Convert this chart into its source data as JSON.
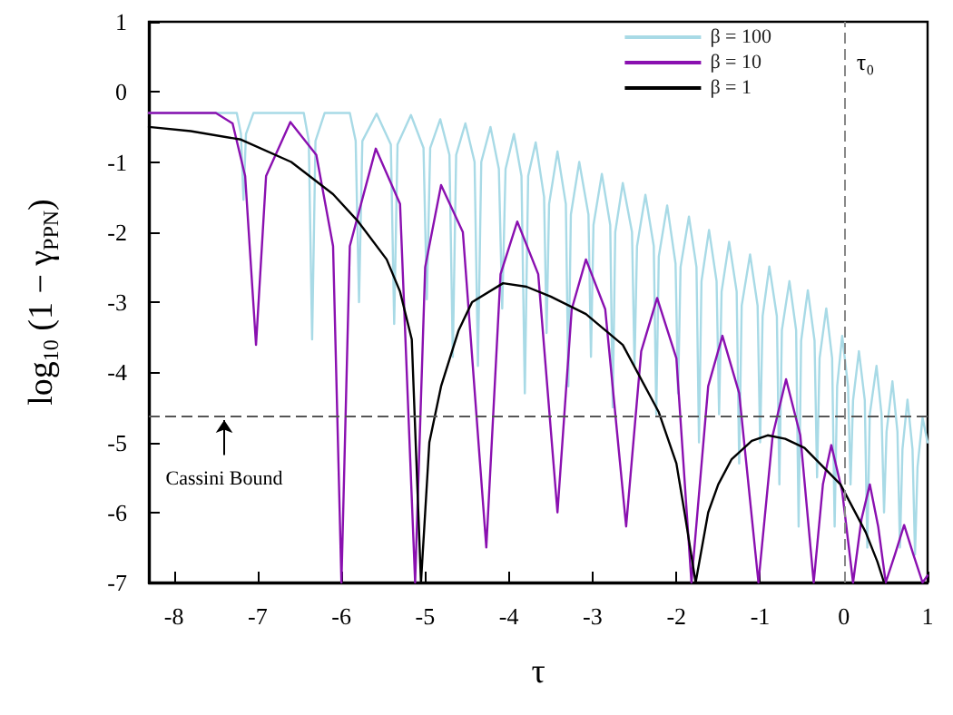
{
  "chart_data": {
    "type": "line",
    "xlabel": "τ",
    "ylabel": "log$_{10}$ (1 − γ$_{PPN}$)",
    "xlim": [
      -8.3,
      1
    ],
    "xticks": [
      -8,
      -7,
      -6,
      -5,
      -4,
      -3,
      -2,
      -1,
      0,
      1
    ],
    "ylim": [
      -7,
      1
    ],
    "yticks": [
      -7,
      -6,
      -5,
      -4,
      -3,
      -2,
      -1,
      0,
      1
    ],
    "grid": false,
    "legend": "top right",
    "marker": "none",
    "line_style": "solid",
    "ref_lines": [
      {
        "axis": "y",
        "value": -4.62,
        "color": "#555555",
        "line_style": "dashed"
      },
      {
        "axis": "x",
        "value": 0,
        "label": "τ₀",
        "color": "#888888",
        "line_style": "dashed"
      }
    ],
    "annotations": [
      {
        "text": "Cassini Bound",
        "x": -7.4,
        "y": -4.62
      }
    ],
    "series": [
      {
        "name": "β = 100",
        "color": "#a8dae6",
        "x": [
          -8.3,
          -7.25,
          -7.2,
          -7.17,
          -7.14,
          -7.05,
          -6.45,
          -6.39,
          -6.35,
          -6.31,
          -6.2,
          -5.9,
          -5.83,
          -5.79,
          -5.75,
          -5.58,
          -5.41,
          -5.37,
          -5.33,
          -5.17,
          -5.02,
          -4.98,
          -4.94,
          -4.82,
          -4.71,
          -4.67,
          -4.63,
          -4.52,
          -4.41,
          -4.37,
          -4.33,
          -4.22,
          -4.12,
          -4.08,
          -4.04,
          -3.94,
          -3.85,
          -3.81,
          -3.77,
          -3.68,
          -3.58,
          -3.55,
          -3.52,
          -3.42,
          -3.32,
          -3.29,
          -3.26,
          -3.16,
          -3.05,
          -3.02,
          -2.99,
          -2.89,
          -2.79,
          -2.76,
          -2.73,
          -2.64,
          -2.53,
          -2.5,
          -2.47,
          -2.37,
          -2.27,
          -2.24,
          -2.21,
          -2.11,
          -2.01,
          -1.98,
          -1.95,
          -1.85,
          -1.76,
          -1.73,
          -1.7,
          -1.61,
          -1.52,
          -1.49,
          -1.46,
          -1.37,
          -1.28,
          -1.25,
          -1.22,
          -1.12,
          -1.03,
          -1.0,
          -0.97,
          -0.89,
          -0.8,
          -0.77,
          -0.74,
          -0.65,
          -0.57,
          -0.54,
          -0.51,
          -0.43,
          -0.35,
          -0.32,
          -0.29,
          -0.21,
          -0.14,
          -0.11,
          -0.08,
          -0.02,
          0.05,
          0.08,
          0.11,
          0.18,
          0.25,
          0.28,
          0.31,
          0.39,
          0.45,
          0.48,
          0.51,
          0.58,
          0.64,
          0.67,
          0.7,
          0.76,
          0.82,
          0.85,
          0.88,
          0.94,
          1.0
        ],
        "values": [
          -0.3,
          -0.3,
          -0.6,
          -1.54,
          -0.6,
          -0.3,
          -0.3,
          -0.7,
          -3.53,
          -0.7,
          -0.3,
          -0.3,
          -0.7,
          -3.0,
          -0.7,
          -0.31,
          -0.75,
          -3.31,
          -0.75,
          -0.33,
          -0.8,
          -2.96,
          -0.8,
          -0.39,
          -0.9,
          -3.78,
          -0.9,
          -0.45,
          -1.0,
          -3.91,
          -1.0,
          -0.5,
          -1.1,
          -3.09,
          -1.1,
          -0.6,
          -1.2,
          -4.3,
          -1.2,
          -0.72,
          -1.5,
          -3.44,
          -1.6,
          -0.85,
          -1.6,
          -4.2,
          -1.75,
          -1.0,
          -1.75,
          -3.78,
          -1.9,
          -1.17,
          -1.9,
          -4.5,
          -2.0,
          -1.3,
          -2.0,
          -3.9,
          -2.2,
          -1.47,
          -2.2,
          -4.6,
          -2.35,
          -1.62,
          -2.45,
          -4.3,
          -2.5,
          -1.78,
          -2.5,
          -5.0,
          -2.7,
          -1.97,
          -2.7,
          -4.6,
          -2.85,
          -2.14,
          -2.85,
          -5.3,
          -3.05,
          -2.32,
          -3.05,
          -5.0,
          -3.2,
          -2.49,
          -3.2,
          -5.6,
          -3.4,
          -2.7,
          -3.4,
          -6.2,
          -3.55,
          -2.83,
          -3.55,
          -5.5,
          -3.8,
          -3.09,
          -3.8,
          -6.2,
          -4.2,
          -3.48,
          -4.2,
          -5.6,
          -4.4,
          -3.7,
          -4.4,
          -6.5,
          -4.6,
          -3.91,
          -4.6,
          -6.0,
          -4.85,
          -4.13,
          -4.85,
          -6.5,
          -5.1,
          -4.39,
          -5.1,
          -6.6,
          -5.35,
          -4.65,
          -5.0
        ]
      },
      {
        "name": "β = 10",
        "color": "#8a10b0",
        "x": [
          -8.3,
          -7.5,
          -7.3,
          -7.15,
          -7.02,
          -6.9,
          -6.61,
          -6.3,
          -6.1,
          -6.0,
          -5.9,
          -5.59,
          -5.3,
          -5.12,
          -5.0,
          -4.81,
          -4.55,
          -4.27,
          -4.1,
          -3.9,
          -3.65,
          -3.42,
          -3.25,
          -3.08,
          -2.85,
          -2.6,
          -2.42,
          -2.23,
          -2.0,
          -1.82,
          -1.62,
          -1.45,
          -1.25,
          -1.02,
          -0.85,
          -0.69,
          -0.52,
          -0.36,
          -0.25,
          -0.15,
          -0.02,
          0.11,
          0.21,
          0.31,
          0.41,
          0.5,
          0.61,
          0.72,
          0.83,
          0.94,
          1.0
        ],
        "values": [
          -0.3,
          -0.3,
          -0.45,
          -1.2,
          -3.61,
          -1.2,
          -0.43,
          -0.9,
          -2.2,
          -7,
          -2.2,
          -0.81,
          -1.6,
          -7,
          -2.5,
          -1.33,
          -2.0,
          -6.5,
          -2.6,
          -1.85,
          -2.6,
          -6.0,
          -3.1,
          -2.39,
          -3.1,
          -6.2,
          -3.7,
          -2.94,
          -3.8,
          -7,
          -4.2,
          -3.48,
          -4.3,
          -7,
          -4.9,
          -4.1,
          -4.9,
          -7,
          -5.6,
          -5.04,
          -5.7,
          -7,
          -6.1,
          -5.6,
          -6.2,
          -7,
          -6.6,
          -6.18,
          -6.6,
          -7,
          -6.9
        ]
      },
      {
        "name": "β = 1",
        "color": "#000000",
        "x": [
          -8.3,
          -7.8,
          -7.2,
          -6.6,
          -6.1,
          -5.8,
          -5.46,
          -5.3,
          -5.16,
          -5.05,
          -4.95,
          -4.81,
          -4.6,
          -4.44,
          -4.07,
          -3.79,
          -3.5,
          -3.08,
          -2.64,
          -2.21,
          -2.0,
          -1.9,
          -1.77,
          -1.62,
          -1.5,
          -1.34,
          -1.1,
          -0.91,
          -0.7,
          -0.47,
          -0.04,
          0.26,
          0.4,
          0.48
        ],
        "values": [
          -0.5,
          -0.56,
          -0.68,
          -1.0,
          -1.46,
          -1.85,
          -2.39,
          -2.85,
          -3.53,
          -7,
          -5.0,
          -4.2,
          -3.4,
          -3.0,
          -2.73,
          -2.78,
          -2.92,
          -3.17,
          -3.61,
          -4.57,
          -5.3,
          -6.02,
          -7,
          -6.0,
          -5.6,
          -5.24,
          -4.98,
          -4.9,
          -4.95,
          -5.08,
          -5.6,
          -6.28,
          -6.7,
          -7
        ]
      }
    ]
  }
}
